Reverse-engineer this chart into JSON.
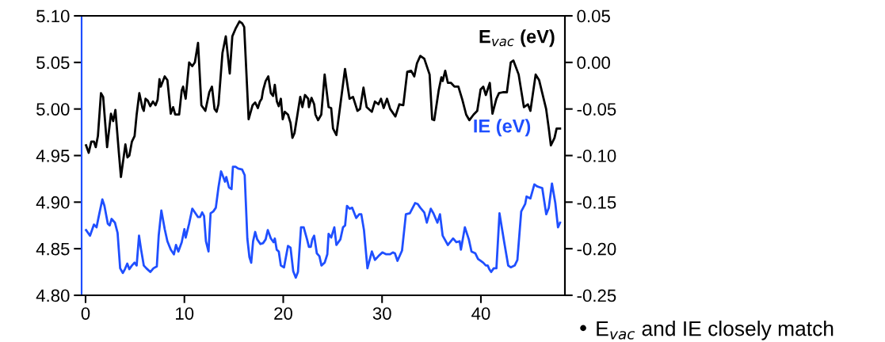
{
  "chart_data": {
    "type": "line",
    "xlim": [
      -0.4,
      48.5
    ],
    "xticks": [
      0,
      10,
      20,
      30,
      40
    ],
    "ylim": [
      4.8,
      5.1
    ],
    "yticks": [
      {
        "value": 4.8,
        "label": "4.80"
      },
      {
        "value": 4.85,
        "label": "4.85"
      },
      {
        "value": 4.9,
        "label": "4.90"
      },
      {
        "value": 4.95,
        "label": "4.95"
      },
      {
        "value": 5.0,
        "label": "5.00"
      },
      {
        "value": 5.05,
        "label": "5.05"
      },
      {
        "value": 5.1,
        "label": "5.10"
      }
    ],
    "y2lim": [
      -0.25,
      0.05
    ],
    "y2ticks": [
      {
        "value": -0.25,
        "label": "-0.25"
      },
      {
        "value": -0.2,
        "label": "-0.20"
      },
      {
        "value": -0.15,
        "label": "-0.15"
      },
      {
        "value": -0.1,
        "label": "-0.10"
      },
      {
        "value": -0.05,
        "label": "-0.05"
      },
      {
        "value": 0.0,
        "label": "0.00"
      },
      {
        "value": 0.05,
        "label": "0.05"
      }
    ],
    "grid": false,
    "annotations": [
      "• E$_{vac}$ and IE closely match"
    ],
    "series": [
      {
        "name": "E$_{vac}$ (eV)",
        "color": "#000000",
        "axis": "y2",
        "x": [
          0.05,
          0.32,
          0.58,
          0.85,
          1.03,
          1.25,
          1.56,
          1.78,
          2.18,
          2.57,
          2.79,
          3.02,
          3.37,
          3.58,
          4.03,
          4.24,
          4.43,
          4.69,
          4.96,
          5.17,
          5.44,
          5.76,
          5.89,
          6.07,
          6.29,
          6.55,
          6.82,
          7.08,
          7.29,
          7.48,
          7.61,
          8.01,
          8.28,
          8.62,
          8.86,
          9.07,
          9.47,
          9.73,
          9.87,
          10.13,
          10.48,
          10.8,
          11.06,
          11.38,
          11.72,
          12.12,
          12.52,
          12.79,
          13.05,
          13.26,
          13.45,
          13.85,
          14.19,
          14.3,
          14.59,
          14.85,
          15.17,
          15.57,
          15.84,
          16.05,
          16.5,
          16.9,
          17.16,
          17.43,
          17.64,
          17.82,
          17.96,
          18.22,
          18.49,
          18.75,
          18.97,
          19.15,
          19.36,
          19.55,
          19.76,
          19.95,
          20.16,
          20.48,
          20.74,
          20.93,
          21.14,
          21.41,
          21.72,
          21.94,
          22.2,
          22.52,
          22.6,
          22.86,
          23.13,
          23.26,
          23.53,
          23.85,
          24.19,
          24.59,
          24.85,
          25.04,
          25.38,
          25.65,
          26.25,
          26.71,
          27.06,
          27.51,
          27.77,
          28.12,
          28.44,
          28.97,
          29.28,
          29.63,
          29.89,
          30.16,
          30.5,
          30.82,
          31.35,
          31.75,
          32.15,
          32.55,
          32.94,
          33.26,
          33.53,
          33.87,
          34.27,
          34.81,
          35.07,
          35.28,
          35.73,
          36.0,
          36.13,
          36.39,
          36.66,
          36.98,
          37.32,
          37.72,
          38.12,
          38.51,
          38.83,
          39.26,
          39.63,
          39.97,
          40.24,
          40.5,
          40.9,
          41.17,
          41.57,
          41.83,
          42.23,
          42.63,
          43.02,
          43.29,
          43.82,
          44.35,
          44.75,
          45.01,
          45.54,
          45.89,
          46.21,
          46.6,
          46.87,
          47.08,
          47.45,
          47.66,
          48.01
        ],
        "values": [
          -0.089,
          -0.097,
          -0.085,
          -0.085,
          -0.091,
          -0.079,
          -0.033,
          -0.037,
          -0.091,
          -0.055,
          -0.063,
          -0.051,
          -0.097,
          -0.123,
          -0.088,
          -0.102,
          -0.1,
          -0.085,
          -0.079,
          -0.056,
          -0.033,
          -0.049,
          -0.052,
          -0.039,
          -0.041,
          -0.047,
          -0.042,
          -0.046,
          -0.04,
          -0.018,
          -0.026,
          -0.015,
          -0.019,
          -0.055,
          -0.048,
          -0.056,
          -0.056,
          -0.03,
          -0.026,
          -0.039,
          0.0,
          -0.004,
          0.0,
          0.021,
          -0.046,
          -0.052,
          -0.032,
          -0.026,
          -0.05,
          -0.053,
          -0.045,
          0.01,
          0.028,
          0.017,
          -0.012,
          0.028,
          0.036,
          0.044,
          0.042,
          0.038,
          -0.061,
          -0.046,
          -0.043,
          -0.049,
          -0.042,
          -0.039,
          -0.03,
          -0.02,
          -0.015,
          -0.033,
          -0.036,
          -0.024,
          -0.042,
          -0.047,
          -0.039,
          -0.061,
          -0.053,
          -0.056,
          -0.065,
          -0.081,
          -0.076,
          -0.058,
          -0.037,
          -0.048,
          -0.035,
          -0.039,
          -0.048,
          -0.038,
          -0.045,
          -0.056,
          -0.062,
          -0.056,
          -0.013,
          -0.048,
          -0.049,
          -0.071,
          -0.078,
          -0.056,
          -0.007,
          -0.039,
          -0.037,
          -0.052,
          -0.05,
          -0.027,
          -0.048,
          -0.053,
          -0.042,
          -0.045,
          -0.039,
          -0.049,
          -0.039,
          -0.05,
          -0.058,
          -0.045,
          -0.046,
          -0.01,
          -0.009,
          -0.015,
          -0.001,
          0.007,
          0.004,
          -0.013,
          -0.061,
          -0.062,
          -0.03,
          -0.016,
          -0.02,
          -0.009,
          -0.022,
          -0.022,
          -0.026,
          -0.026,
          -0.04,
          -0.056,
          -0.062,
          -0.056,
          -0.052,
          -0.029,
          -0.026,
          -0.035,
          -0.022,
          -0.055,
          -0.039,
          -0.033,
          -0.032,
          -0.032,
          0.0,
          0.002,
          -0.013,
          -0.048,
          -0.045,
          -0.052,
          -0.013,
          -0.019,
          -0.033,
          -0.05,
          -0.071,
          -0.089,
          -0.081,
          -0.071,
          -0.071
        ]
      },
      {
        "name": "IE (eV)",
        "color": "#1f4fff",
        "axis": "y",
        "x": [
          0.05,
          0.45,
          0.85,
          1.11,
          1.38,
          1.7,
          1.91,
          2.25,
          2.44,
          2.63,
          2.97,
          3.24,
          3.5,
          3.77,
          3.98,
          4.22,
          4.43,
          4.69,
          4.96,
          5.17,
          5.41,
          5.62,
          5.89,
          6.15,
          6.55,
          6.87,
          7.21,
          7.4,
          7.67,
          8.01,
          8.28,
          8.62,
          8.94,
          9.15,
          9.39,
          9.73,
          10.0,
          10.13,
          10.48,
          10.8,
          11.38,
          11.59,
          11.8,
          11.99,
          12.18,
          12.44,
          12.65,
          12.92,
          13.18,
          13.45,
          13.71,
          13.93,
          14.11,
          14.24,
          14.51,
          14.77,
          14.91,
          15.17,
          15.44,
          15.84,
          16.1,
          16.37,
          16.58,
          16.76,
          16.95,
          17.16,
          17.37,
          17.69,
          17.96,
          18.22,
          18.44,
          18.75,
          19.02,
          19.15,
          19.34,
          19.55,
          19.76,
          20.08,
          20.48,
          20.74,
          21.01,
          21.27,
          21.49,
          21.8,
          22.07,
          22.41,
          22.6,
          22.79,
          22.94,
          23.13,
          23.4,
          23.66,
          23.87,
          24.19,
          24.46,
          24.59,
          24.85,
          25.17,
          25.38,
          25.78,
          26.05,
          26.26,
          26.45,
          26.71,
          26.98,
          27.38,
          27.69,
          27.9,
          28.17,
          28.52,
          28.97,
          29.28,
          29.63,
          30.03,
          30.42,
          30.82,
          31.09,
          31.3,
          31.56,
          32.02,
          32.41,
          32.81,
          33.34,
          33.61,
          33.87,
          34.27,
          34.53,
          34.93,
          35.2,
          35.6,
          35.86,
          36.13,
          36.66,
          37.19,
          37.51,
          37.85,
          37.98,
          38.38,
          38.78,
          39.05,
          39.44,
          39.71,
          39.97,
          40.24,
          40.5,
          40.69,
          40.85,
          41.04,
          41.3,
          41.57,
          41.88,
          42.36,
          42.76,
          43.02,
          43.42,
          43.69,
          44.08,
          44.48,
          44.62,
          45.01,
          45.41,
          45.68,
          45.94,
          46.21,
          46.61,
          46.87,
          47.19,
          47.53,
          47.8,
          48.01
        ],
        "values": [
          4.87,
          4.864,
          4.876,
          4.873,
          4.887,
          4.903,
          4.896,
          4.877,
          4.875,
          4.882,
          4.878,
          4.867,
          4.829,
          4.824,
          4.828,
          4.834,
          4.828,
          4.832,
          4.835,
          4.832,
          4.864,
          4.849,
          4.832,
          4.829,
          4.825,
          4.829,
          4.831,
          4.864,
          4.891,
          4.871,
          4.858,
          4.849,
          4.844,
          4.854,
          4.847,
          4.857,
          4.871,
          4.862,
          4.877,
          4.893,
          4.884,
          4.884,
          4.889,
          4.885,
          4.858,
          4.847,
          4.888,
          4.89,
          4.894,
          4.916,
          4.933,
          4.927,
          4.922,
          4.927,
          4.916,
          4.914,
          4.938,
          4.938,
          4.936,
          4.935,
          4.929,
          4.861,
          4.841,
          4.835,
          4.858,
          4.868,
          4.86,
          4.855,
          4.856,
          4.86,
          4.87,
          4.861,
          4.857,
          4.861,
          4.849,
          4.847,
          4.832,
          4.83,
          4.853,
          4.851,
          4.826,
          4.819,
          4.825,
          4.873,
          4.873,
          4.86,
          4.852,
          4.852,
          4.86,
          4.864,
          4.845,
          4.842,
          4.832,
          4.835,
          4.844,
          4.866,
          4.862,
          4.873,
          4.854,
          4.86,
          4.873,
          4.875,
          4.896,
          4.893,
          4.894,
          4.883,
          4.887,
          4.887,
          4.87,
          4.829,
          4.847,
          4.838,
          4.842,
          4.846,
          4.844,
          4.844,
          4.846,
          4.845,
          4.837,
          4.848,
          4.887,
          4.888,
          4.899,
          4.898,
          4.894,
          4.889,
          4.878,
          4.893,
          4.888,
          4.878,
          4.887,
          4.864,
          4.854,
          4.861,
          4.857,
          4.858,
          4.849,
          4.873,
          4.86,
          4.847,
          4.845,
          4.839,
          4.837,
          4.835,
          4.832,
          4.832,
          4.828,
          4.825,
          4.829,
          4.829,
          4.888,
          4.857,
          4.832,
          4.83,
          4.832,
          4.838,
          4.89,
          4.898,
          4.906,
          4.904,
          4.919,
          4.917,
          4.916,
          4.915,
          4.887,
          4.894,
          4.92,
          4.899,
          4.873,
          4.878
        ]
      }
    ]
  }
}
